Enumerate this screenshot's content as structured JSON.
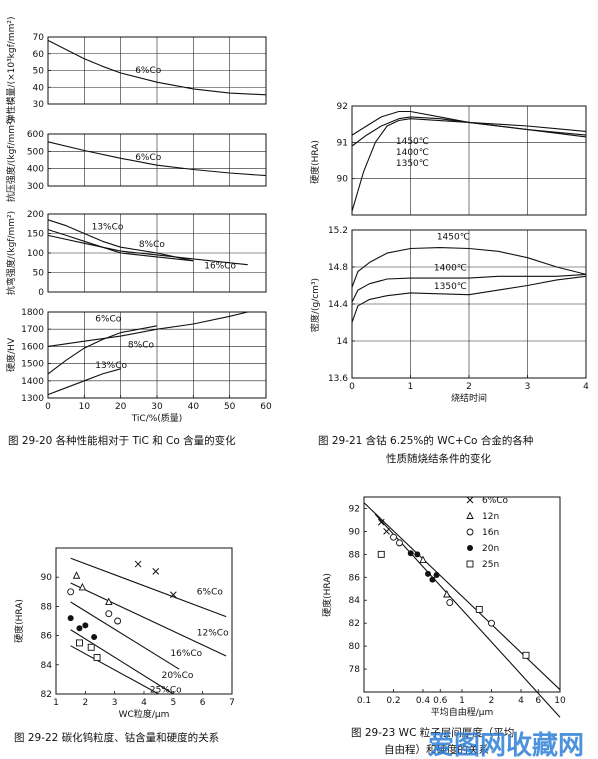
{
  "chart_data": [
    {
      "id": "c1",
      "type": "line",
      "ylabel": "弹性模量/(×10³kgf/mm²)",
      "xlim": [
        0,
        60
      ],
      "ylim": [
        30,
        70
      ],
      "yticks": [
        30,
        40,
        50,
        60,
        70
      ],
      "xticks": [],
      "series": [
        {
          "label": "6%Co",
          "points": [
            [
              0,
              68
            ],
            [
              5,
              62.5
            ],
            [
              10,
              57
            ],
            [
              15,
              52.5
            ],
            [
              20,
              48.5
            ],
            [
              30,
              43
            ],
            [
              40,
              39
            ],
            [
              50,
              36.5
            ],
            [
              60,
              35.5
            ]
          ]
        }
      ],
      "labels": [
        {
          "text": "6%Co",
          "x": 24,
          "y": 48.5
        }
      ]
    },
    {
      "id": "c2",
      "type": "line",
      "ylabel": "抗压强度/(kgf/mm²)",
      "xlim": [
        0,
        60
      ],
      "ylim": [
        300,
        600
      ],
      "yticks": [
        300,
        400,
        500,
        600
      ],
      "xticks": [],
      "series": [
        {
          "label": "6%Co",
          "points": [
            [
              0,
              555
            ],
            [
              10,
              505
            ],
            [
              20,
              460
            ],
            [
              25,
              440
            ],
            [
              30,
              420
            ],
            [
              40,
              395
            ],
            [
              50,
              375
            ],
            [
              60,
              360
            ]
          ]
        }
      ],
      "labels": [
        {
          "text": "6%Co",
          "x": 24,
          "y": 450
        }
      ]
    },
    {
      "id": "c3",
      "type": "line",
      "ylabel": "抗弯强度/(kgf/mm²)",
      "xlim": [
        0,
        60
      ],
      "ylim": [
        0,
        200
      ],
      "yticks": [
        0,
        50,
        100,
        150,
        200
      ],
      "xticks": [],
      "series": [
        {
          "label": "13%Co",
          "points": [
            [
              0,
              185
            ],
            [
              5,
              170
            ],
            [
              10,
              150
            ],
            [
              15,
              130
            ],
            [
              20,
              115
            ],
            [
              30,
              100
            ],
            [
              35,
              90
            ],
            [
              40,
              80
            ]
          ]
        },
        {
          "label": "8%Co",
          "points": [
            [
              0,
              160
            ],
            [
              5,
              145
            ],
            [
              10,
              130
            ],
            [
              15,
              115
            ],
            [
              20,
              100
            ],
            [
              30,
              90
            ],
            [
              40,
              80
            ]
          ]
        },
        {
          "label": "16%Co",
          "points": [
            [
              0,
              145
            ],
            [
              10,
              125
            ],
            [
              20,
              105
            ],
            [
              30,
              95
            ],
            [
              40,
              85
            ],
            [
              50,
              75
            ],
            [
              55,
              70
            ]
          ]
        }
      ],
      "labels": [
        {
          "text": "13%Co",
          "x": 12,
          "y": 160
        },
        {
          "text": "8%Co",
          "x": 25,
          "y": 115
        },
        {
          "text": "16%Co",
          "x": 43,
          "y": 60
        }
      ]
    },
    {
      "id": "c4",
      "type": "line",
      "ylabel": "硬度/HV",
      "xlabel": "TiC/%(质量)",
      "xlim": [
        0,
        60
      ],
      "ylim": [
        1300,
        1800
      ],
      "yticks": [
        1300,
        1400,
        1500,
        1600,
        1700,
        1800
      ],
      "xticks": [
        0,
        10,
        20,
        30,
        40,
        50,
        60
      ],
      "series": [
        {
          "label": "6%Co",
          "points": [
            [
              0,
              1600
            ],
            [
              10,
              1630
            ],
            [
              20,
              1660
            ],
            [
              30,
              1700
            ],
            [
              40,
              1730
            ],
            [
              50,
              1775
            ],
            [
              55,
              1800
            ]
          ]
        },
        {
          "label": "8%Co",
          "points": [
            [
              0,
              1440
            ],
            [
              5,
              1520
            ],
            [
              10,
              1590
            ],
            [
              15,
              1640
            ],
            [
              20,
              1680
            ],
            [
              30,
              1720
            ]
          ]
        },
        {
          "label": "13%Co",
          "points": [
            [
              0,
              1320
            ],
            [
              5,
              1360
            ],
            [
              10,
              1400
            ],
            [
              15,
              1440
            ],
            [
              20,
              1470
            ]
          ]
        }
      ],
      "labels": [
        {
          "text": "6%Co",
          "x": 13,
          "y": 1745
        },
        {
          "text": "8%Co",
          "x": 22,
          "y": 1595
        },
        {
          "text": "13%Co",
          "x": 13,
          "y": 1475
        }
      ]
    },
    {
      "id": "c5",
      "type": "line",
      "ylabel": "硬度(HRA)",
      "xlim": [
        0,
        4
      ],
      "ylim": [
        89,
        92
      ],
      "yticks": [
        90,
        91,
        92
      ],
      "xticks": [],
      "series": [
        {
          "label": "1450℃",
          "points": [
            [
              0,
              91.2
            ],
            [
              0.25,
              91.45
            ],
            [
              0.5,
              91.7
            ],
            [
              0.8,
              91.85
            ],
            [
              1,
              91.85
            ],
            [
              1.5,
              91.7
            ],
            [
              2,
              91.55
            ],
            [
              3,
              91.35
            ],
            [
              4,
              91.15
            ]
          ]
        },
        {
          "label": "1400℃",
          "points": [
            [
              0,
              90.9
            ],
            [
              0.25,
              91.2
            ],
            [
              0.5,
              91.45
            ],
            [
              0.8,
              91.65
            ],
            [
              1,
              91.7
            ],
            [
              1.5,
              91.65
            ],
            [
              2,
              91.55
            ],
            [
              3,
              91.35
            ],
            [
              4,
              91.2
            ]
          ]
        },
        {
          "label": "1350℃",
          "points": [
            [
              0,
              89.1
            ],
            [
              0.2,
              90.2
            ],
            [
              0.4,
              91.0
            ],
            [
              0.6,
              91.45
            ],
            [
              0.8,
              91.6
            ],
            [
              1,
              91.65
            ],
            [
              2,
              91.55
            ],
            [
              3,
              91.45
            ],
            [
              4,
              91.3
            ]
          ]
        }
      ],
      "labels": [
        {
          "text": "1450℃",
          "x": 0.75,
          "y": 90.95
        },
        {
          "text": "1400℃",
          "x": 0.75,
          "y": 90.65
        },
        {
          "text": "1350℃",
          "x": 0.75,
          "y": 90.35
        }
      ]
    },
    {
      "id": "c6",
      "type": "line",
      "ylabel": "密度/(g/cm³)",
      "xlabel": "烧结时间",
      "xlim": [
        0,
        4
      ],
      "ylim": [
        13.6,
        15.2
      ],
      "yticks": [
        13.6,
        14.0,
        14.4,
        14.8,
        15.2
      ],
      "xticks": [
        0,
        1,
        2,
        3,
        4
      ],
      "series": [
        {
          "label": "1450℃",
          "points": [
            [
              0,
              14.58
            ],
            [
              0.1,
              14.75
            ],
            [
              0.3,
              14.85
            ],
            [
              0.6,
              14.95
            ],
            [
              1,
              15.0
            ],
            [
              1.5,
              15.01
            ],
            [
              2,
              15.0
            ],
            [
              2.5,
              14.97
            ],
            [
              3,
              14.9
            ],
            [
              3.5,
              14.8
            ],
            [
              4,
              14.72
            ]
          ]
        },
        {
          "label": "1400℃",
          "points": [
            [
              0,
              14.42
            ],
            [
              0.1,
              14.55
            ],
            [
              0.3,
              14.62
            ],
            [
              0.6,
              14.67
            ],
            [
              1,
              14.68
            ],
            [
              2,
              14.68
            ],
            [
              2.5,
              14.7
            ],
            [
              3,
              14.7
            ],
            [
              3.5,
              14.7
            ],
            [
              4,
              14.72
            ]
          ]
        },
        {
          "label": "1350℃",
          "points": [
            [
              0,
              14.2
            ],
            [
              0.1,
              14.38
            ],
            [
              0.3,
              14.45
            ],
            [
              0.6,
              14.49
            ],
            [
              1,
              14.52
            ],
            [
              2,
              14.5
            ],
            [
              2.5,
              14.55
            ],
            [
              3,
              14.6
            ],
            [
              3.5,
              14.66
            ],
            [
              4,
              14.7
            ]
          ]
        }
      ],
      "labels": [
        {
          "text": "1450℃",
          "x": 1.45,
          "y": 15.1
        },
        {
          "text": "1400℃",
          "x": 1.4,
          "y": 14.76
        },
        {
          "text": "1350℃",
          "x": 1.4,
          "y": 14.56
        }
      ]
    },
    {
      "id": "c7",
      "type": "scatter",
      "ylabel": "硬度(HRA)",
      "xlabel": "WC粒度/μm",
      "xlim": [
        1,
        7
      ],
      "ylim": [
        82,
        92
      ],
      "yticks": [
        82,
        84,
        86,
        88,
        90
      ],
      "xticks": [
        1,
        2,
        3,
        4,
        5,
        6,
        7
      ],
      "lines": [
        {
          "from": [
            1.5,
            91.3
          ],
          "to": [
            6.8,
            87.3
          ]
        },
        {
          "from": [
            1.5,
            89.6
          ],
          "to": [
            6.8,
            84.6
          ]
        },
        {
          "from": [
            1.5,
            88.3
          ],
          "to": [
            5.2,
            83.7
          ]
        },
        {
          "from": [
            1.5,
            86.4
          ],
          "to": [
            5.0,
            82.0
          ]
        },
        {
          "from": [
            1.5,
            85.3
          ],
          "to": [
            4.5,
            82.0
          ]
        }
      ],
      "points": [
        {
          "marker": "x",
          "x": 3.8,
          "y": 90.9
        },
        {
          "marker": "x",
          "x": 4.4,
          "y": 90.4
        },
        {
          "marker": "x",
          "x": 5.0,
          "y": 88.8
        },
        {
          "marker": "triangle",
          "x": 1.7,
          "y": 90.1
        },
        {
          "marker": "triangle",
          "x": 1.9,
          "y": 89.3
        },
        {
          "marker": "triangle",
          "x": 2.8,
          "y": 88.3
        },
        {
          "marker": "circle",
          "x": 1.5,
          "y": 89.0
        },
        {
          "marker": "circle",
          "x": 2.8,
          "y": 87.5
        },
        {
          "marker": "circle",
          "x": 3.1,
          "y": 87.0
        },
        {
          "marker": "dot",
          "x": 1.5,
          "y": 87.2
        },
        {
          "marker": "dot",
          "x": 1.8,
          "y": 86.5
        },
        {
          "marker": "dot",
          "x": 2.0,
          "y": 86.7
        },
        {
          "marker": "dot",
          "x": 2.3,
          "y": 85.9
        },
        {
          "marker": "square",
          "x": 1.8,
          "y": 85.5
        },
        {
          "marker": "square",
          "x": 2.2,
          "y": 85.2
        },
        {
          "marker": "square",
          "x": 2.4,
          "y": 84.5
        }
      ],
      "labels": [
        {
          "text": "6%Co",
          "x": 5.8,
          "y": 88.8
        },
        {
          "text": "12%Co",
          "x": 5.8,
          "y": 86.0
        },
        {
          "text": "16%Co",
          "x": 4.9,
          "y": 84.6
        },
        {
          "text": "20%Co",
          "x": 4.6,
          "y": 83.1
        },
        {
          "text": "25%Co",
          "x": 4.2,
          "y": 82.1
        }
      ]
    },
    {
      "id": "c8",
      "type": "scatter",
      "ylabel": "硬度(HRA)",
      "xlabel": "平均自由程/μm",
      "xscale": "log",
      "xlim": [
        0.1,
        10
      ],
      "ylim": [
        76,
        93
      ],
      "yticks": [
        78,
        80,
        82,
        84,
        86,
        88,
        90,
        92
      ],
      "xticks": [
        0.1,
        0.2,
        0.4,
        0.6,
        1,
        2,
        4,
        6,
        10
      ],
      "xticklabels": [
        "0.1",
        "0.2",
        "0.4",
        "0.6",
        "1",
        "2",
        "4",
        "6",
        "10"
      ],
      "lines": [
        {
          "from": [
            0.1,
            92.5
          ],
          "to": [
            10,
            76.2
          ]
        },
        {
          "from": [
            0.13,
            91.5
          ],
          "to": [
            10,
            73.8
          ]
        }
      ],
      "legend": [
        {
          "marker": "x",
          "text": "6%Co"
        },
        {
          "marker": "triangle",
          "text": "12n"
        },
        {
          "marker": "circle",
          "text": "16n"
        },
        {
          "marker": "dot",
          "text": "20n"
        },
        {
          "marker": "square",
          "text": "25n"
        }
      ],
      "points": [
        {
          "marker": "x",
          "x": 0.15,
          "y": 90.8
        },
        {
          "marker": "x",
          "x": 0.17,
          "y": 90.0
        },
        {
          "marker": "triangle",
          "x": 0.4,
          "y": 87.5
        },
        {
          "marker": "triangle",
          "x": 0.7,
          "y": 84.5
        },
        {
          "marker": "circle",
          "x": 0.2,
          "y": 89.5
        },
        {
          "marker": "circle",
          "x": 0.23,
          "y": 89.0
        },
        {
          "marker": "circle",
          "x": 0.75,
          "y": 83.8
        },
        {
          "marker": "circle",
          "x": 2.0,
          "y": 82.0
        },
        {
          "marker": "dot",
          "x": 0.3,
          "y": 88.1
        },
        {
          "marker": "dot",
          "x": 0.35,
          "y": 88.0
        },
        {
          "marker": "dot",
          "x": 0.45,
          "y": 86.3
        },
        {
          "marker": "dot",
          "x": 0.5,
          "y": 85.8
        },
        {
          "marker": "dot",
          "x": 0.55,
          "y": 86.2
        },
        {
          "marker": "square",
          "x": 0.15,
          "y": 88.0
        },
        {
          "marker": "square",
          "x": 1.5,
          "y": 83.2
        },
        {
          "marker": "square",
          "x": 4.5,
          "y": 79.2
        }
      ]
    }
  ],
  "captions": {
    "c1": "图 29-20   各种性能相对于 TiC 和 Co 含量的变化",
    "c2_line1": "图 29-21   含钴 6.25%的 WC+Co 合金的各种",
    "c2_line2": "性质随烧结条件的变化",
    "c3": "图 29-22   碳化钨粒度、钴含量和硬度的关系",
    "c4_line1": "图 29-23   WC 粒子层间厚度（平均",
    "c4_line2": "自由程）和硬度的关系"
  },
  "watermark": "爱图网收藏网"
}
